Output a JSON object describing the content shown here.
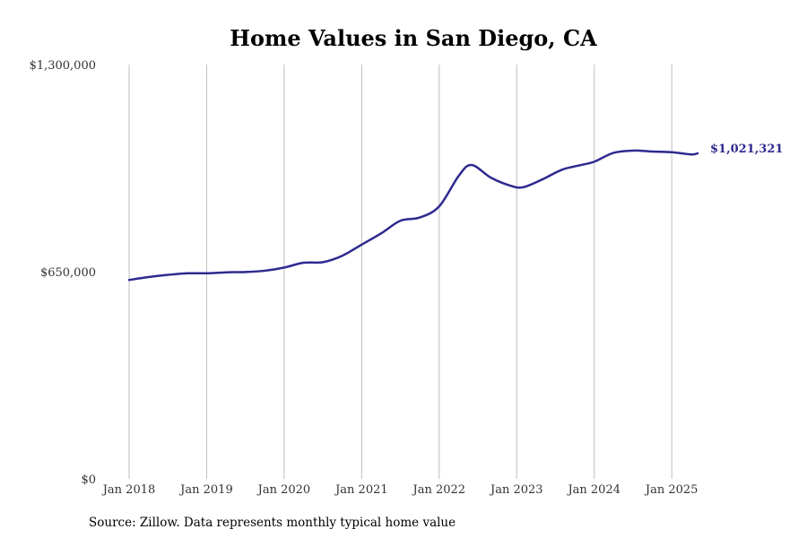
{
  "chart_data": {
    "type": "line",
    "title": "Home Values in San Diego, CA",
    "source": "Source: Zillow. Data represents monthly typical home value",
    "y_ticks": [
      {
        "value": 0,
        "label": "$0"
      },
      {
        "value": 650000,
        "label": "$650,000"
      },
      {
        "value": 1300000,
        "label": "$1,300,000"
      }
    ],
    "ylim": [
      0,
      1300000
    ],
    "x_ticks": [
      {
        "value": "2018-01",
        "label": "Jan 2018"
      },
      {
        "value": "2019-01",
        "label": "Jan 2019"
      },
      {
        "value": "2020-01",
        "label": "Jan 2020"
      },
      {
        "value": "2021-01",
        "label": "Jan 2021"
      },
      {
        "value": "2022-01",
        "label": "Jan 2022"
      },
      {
        "value": "2023-01",
        "label": "Jan 2023"
      },
      {
        "value": "2024-01",
        "label": "Jan 2024"
      },
      {
        "value": "2025-01",
        "label": "Jan 2025"
      }
    ],
    "xlim": [
      "2018-01",
      "2025-05"
    ],
    "grid": "vertical",
    "line_color": "#2e2a8f",
    "end_label": "$1,021,321",
    "series": [
      {
        "x": [
          "2018-01",
          "2018-04",
          "2018-07",
          "2018-10",
          "2019-01",
          "2019-04",
          "2019-07",
          "2019-10",
          "2020-01",
          "2020-04",
          "2020-07",
          "2020-10",
          "2021-01",
          "2021-04",
          "2021-07",
          "2021-10",
          "2022-01",
          "2022-04",
          "2022-06",
          "2022-09",
          "2022-12",
          "2023-02",
          "2023-05",
          "2023-08",
          "2023-11",
          "2024-01",
          "2024-04",
          "2024-07",
          "2024-10",
          "2025-01",
          "2025-04",
          "2025-05"
        ],
        "y": [
          624000,
          633000,
          640000,
          645000,
          645000,
          648000,
          649000,
          653000,
          663000,
          678000,
          680000,
          700000,
          735000,
          770000,
          810000,
          820000,
          855000,
          950000,
          985000,
          945000,
          920000,
          915000,
          940000,
          970000,
          985000,
          995000,
          1023000,
          1030000,
          1027000,
          1025000,
          1018000,
          1021321
        ]
      }
    ]
  }
}
